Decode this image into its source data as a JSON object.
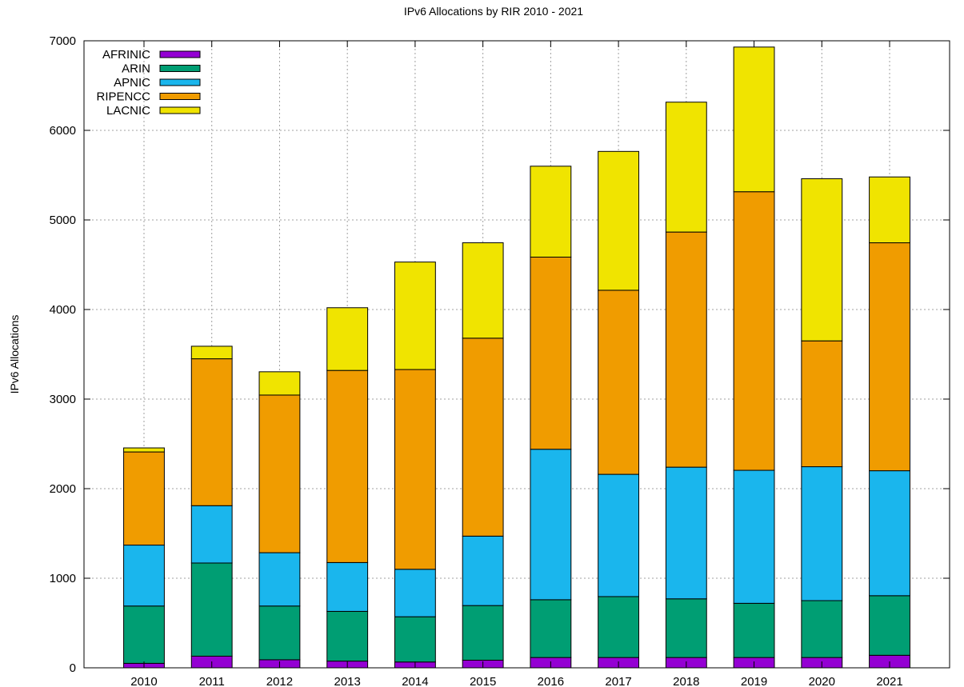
{
  "chart_data": {
    "type": "bar",
    "stacked": true,
    "title": "IPv6 Allocations by RIR 2010 - 2021",
    "xlabel": "",
    "ylabel": "IPv6 Allocations",
    "ylim": [
      0,
      7000
    ],
    "yticks": [
      "0",
      "1000",
      "2000",
      "3000",
      "4000",
      "5000",
      "6000",
      "7000"
    ],
    "grid": true,
    "legend_position": "top-left",
    "categories": [
      "2010",
      "2011",
      "2012",
      "2013",
      "2014",
      "2015",
      "2016",
      "2017",
      "2018",
      "2019",
      "2020",
      "2021"
    ],
    "series": [
      {
        "name": "AFRINIC",
        "color": "#9400d3",
        "values": [
          50,
          130,
          90,
          75,
          65,
          85,
          115,
          115,
          115,
          115,
          115,
          140
        ]
      },
      {
        "name": "ARIN",
        "color": "#009e73",
        "values": [
          640,
          1040,
          600,
          555,
          505,
          610,
          645,
          680,
          655,
          605,
          635,
          665
        ]
      },
      {
        "name": "APNIC",
        "color": "#1ab6ed",
        "values": [
          680,
          640,
          595,
          545,
          530,
          775,
          1680,
          1365,
          1470,
          1485,
          1495,
          1395
        ]
      },
      {
        "name": "RIPENCC",
        "color": "#f09c00",
        "values": [
          1040,
          1640,
          1760,
          2145,
          2230,
          2210,
          2145,
          2055,
          2625,
          3110,
          1405,
          2545
        ]
      },
      {
        "name": "LACNIC",
        "color": "#f0e400",
        "values": [
          45,
          140,
          260,
          700,
          1200,
          1065,
          1015,
          1550,
          1450,
          1615,
          1810,
          735
        ]
      }
    ]
  }
}
